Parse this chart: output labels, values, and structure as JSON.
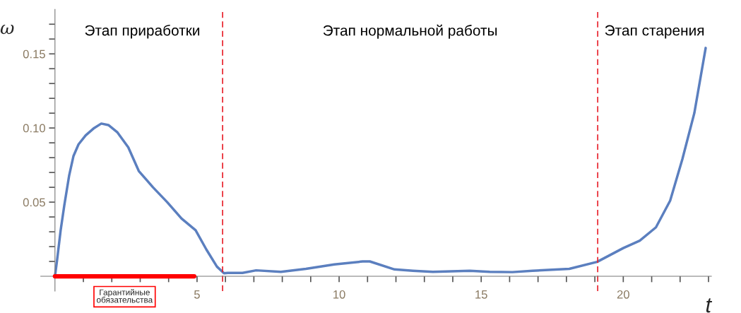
{
  "chart_data": {
    "type": "line",
    "xlabel": "t",
    "ylabel": "ω",
    "x": [
      0,
      0.075,
      0.2,
      0.33,
      0.5,
      0.65,
      0.83,
      1.08,
      1.38,
      1.63,
      1.88,
      2.2,
      2.58,
      2.95,
      3.45,
      3.95,
      4.45,
      4.95,
      5.33,
      5.7,
      5.95,
      6.08,
      6.6,
      7.08,
      7.95,
      8.83,
      9.83,
      10.83,
      11.08,
      11.95,
      12.6,
      13.3,
      14.6,
      15.3,
      16.1,
      16.8,
      18.1,
      19.08,
      20.0,
      20.58,
      21.15,
      21.65,
      22.08,
      22.5,
      22.9
    ],
    "series": [
      {
        "color": "#5b7fbf",
        "values": [
          0,
          0.011,
          0.031,
          0.048,
          0.068,
          0.081,
          0.089,
          0.095,
          0.1,
          0.103,
          0.102,
          0.097,
          0.087,
          0.071,
          0.06,
          0.05,
          0.039,
          0.031,
          0.018,
          0.0065,
          0.002,
          0.0023,
          0.0023,
          0.004,
          0.003,
          0.005,
          0.008,
          0.01,
          0.01,
          0.0046,
          0.0037,
          0.003,
          0.0037,
          0.003,
          0.0028,
          0.0037,
          0.005,
          0.0097,
          0.019,
          0.024,
          0.033,
          0.051,
          0.079,
          0.11,
          0.154
        ]
      },
      {
        "color": "#ff0000",
        "x": [
          0,
          4.9
        ],
        "values": [
          0,
          0
        ]
      }
    ],
    "xlim": [
      -0.5,
      23.1
    ],
    "ylim": [
      -0.01,
      0.18
    ],
    "xticks": [
      {
        "value": 1,
        "label": null
      },
      {
        "value": 2,
        "label": null
      },
      {
        "value": 3,
        "label": null
      },
      {
        "value": 4,
        "label": null
      },
      5,
      {
        "value": 6,
        "label": null
      },
      {
        "value": 7,
        "label": null
      },
      {
        "value": 8,
        "label": null
      },
      {
        "value": 9,
        "label": null
      },
      10,
      {
        "value": 11,
        "label": null
      },
      {
        "value": 12,
        "label": null
      },
      {
        "value": 13,
        "label": null
      },
      {
        "value": 14,
        "label": null
      },
      15,
      {
        "value": 16,
        "label": null
      },
      {
        "value": 17,
        "label": null
      },
      {
        "value": 18,
        "label": null
      },
      {
        "value": 19,
        "label": null
      },
      20,
      {
        "value": 21,
        "label": null
      },
      {
        "value": 22,
        "label": null
      },
      {
        "value": 23,
        "label": null
      }
    ],
    "yticks": [
      {
        "value": 0.01,
        "label": null
      },
      {
        "value": 0.02,
        "label": null
      },
      {
        "value": 0.03,
        "label": null
      },
      {
        "value": 0.04,
        "label": null
      },
      {
        "value": 0.05,
        "label": "0.05"
      },
      {
        "value": 0.06,
        "label": null
      },
      {
        "value": 0.07,
        "label": null
      },
      {
        "value": 0.08,
        "label": null
      },
      {
        "value": 0.09,
        "label": null
      },
      {
        "value": 0.1,
        "label": "0.10"
      },
      {
        "value": 0.11,
        "label": null
      },
      {
        "value": 0.12,
        "label": null
      },
      {
        "value": 0.13,
        "label": null
      },
      {
        "value": 0.14,
        "label": null
      },
      {
        "value": 0.15,
        "label": "0.15"
      },
      {
        "value": 0.16,
        "label": null
      },
      {
        "value": 0.17,
        "label": null
      }
    ],
    "ref_lines": [
      {
        "axis": "x",
        "value": 5.9,
        "color": "#e8202a",
        "line_style": "dashed"
      },
      {
        "axis": "x",
        "value": 19.1,
        "color": "#e8202a",
        "line_style": "dashed"
      }
    ],
    "annotations": [
      "Этап приработки",
      "Этап нормальной работы",
      "Этап старения",
      {
        "text": "Гарантийные обязательства",
        "x": 2.45,
        "y": 0
      }
    ],
    "grid": false,
    "legend": false,
    "marker": "none",
    "line_style": "solid"
  }
}
